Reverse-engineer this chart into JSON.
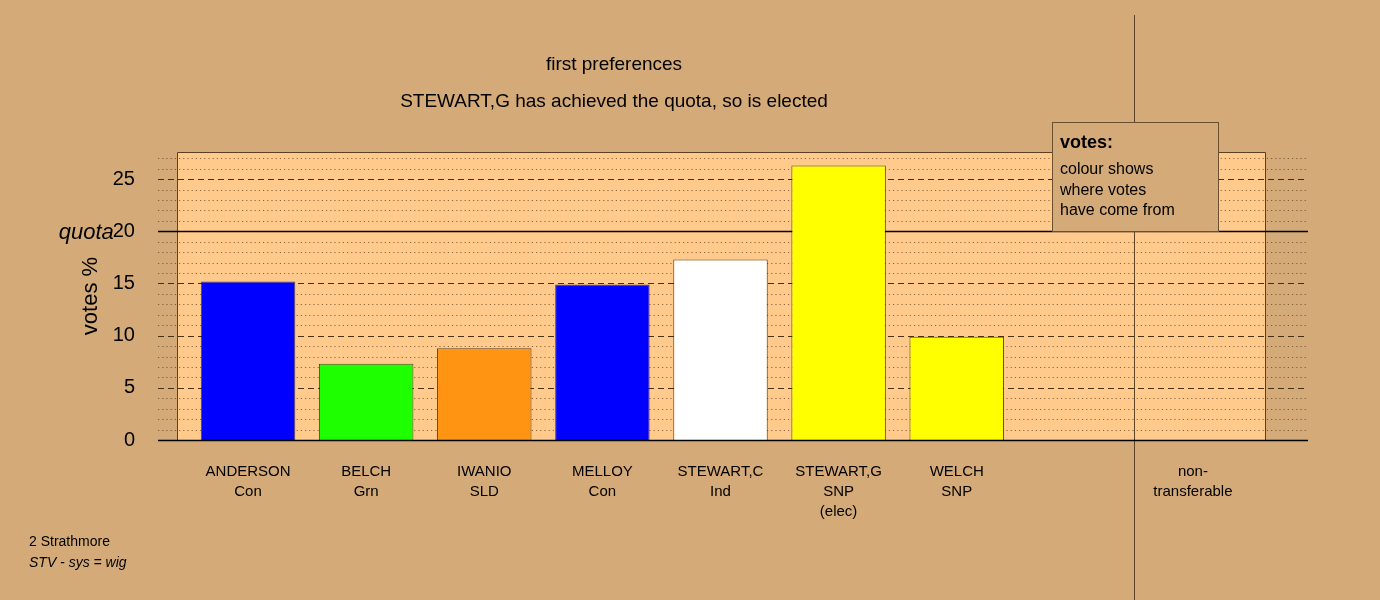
{
  "chart_data": {
    "type": "bar",
    "title": "first preferences",
    "subtitle": "STEWART,G has achieved the quota, so is elected",
    "ylabel": "votes %",
    "categories": [
      "ANDERSON\nCon",
      "BELCH\nGrn",
      "IWANIO\nSLD",
      "MELLOY\nCon",
      "STEWART,C\nInd",
      "STEWART,G\nSNP\n(elec)",
      "WELCH\nSNP",
      null,
      "non-\ntransferable"
    ],
    "values": [
      15.2,
      7.3,
      8.8,
      14.9,
      17.3,
      26.3,
      9.9,
      null,
      0
    ],
    "colors": [
      "#0000ff",
      "#1eff00",
      "#ff9412",
      "#0000ff",
      "#ffffff",
      "#ffff00",
      "#ffff00",
      null,
      null
    ],
    "ylim": [
      0,
      27.6
    ],
    "yticks": [
      0,
      {
        "value": 1,
        "label": null
      },
      {
        "value": 2,
        "label": null
      },
      {
        "value": 3,
        "label": null
      },
      {
        "value": 4,
        "label": null
      },
      5,
      {
        "value": 6,
        "label": null
      },
      {
        "value": 7,
        "label": null
      },
      {
        "value": 8,
        "label": null
      },
      {
        "value": 9,
        "label": null
      },
      10,
      {
        "value": 11,
        "label": null
      },
      {
        "value": 12,
        "label": null
      },
      {
        "value": 13,
        "label": null
      },
      {
        "value": 14,
        "label": null
      },
      15,
      {
        "value": 16,
        "label": null
      },
      {
        "value": 17,
        "label": null
      },
      {
        "value": 18,
        "label": null
      },
      {
        "value": 19,
        "label": null
      },
      20,
      {
        "value": 21,
        "label": null
      },
      {
        "value": 22,
        "label": null
      },
      {
        "value": 23,
        "label": null
      },
      {
        "value": 24,
        "label": null
      },
      25,
      {
        "value": 26,
        "label": null
      },
      {
        "value": 27,
        "label": null
      }
    ],
    "grid": "y",
    "ref_lines": [
      {
        "axis": "y",
        "value": 20,
        "label": "quota",
        "color": "#000000"
      },
      {
        "axis": "x",
        "value": "non-\ntransferable",
        "color": "#5c4326"
      }
    ],
    "annotations": [
      "votes:",
      "colour shows\nwhere votes\nhave come from",
      "2 Strathmore",
      "STV - sys = wig"
    ]
  }
}
